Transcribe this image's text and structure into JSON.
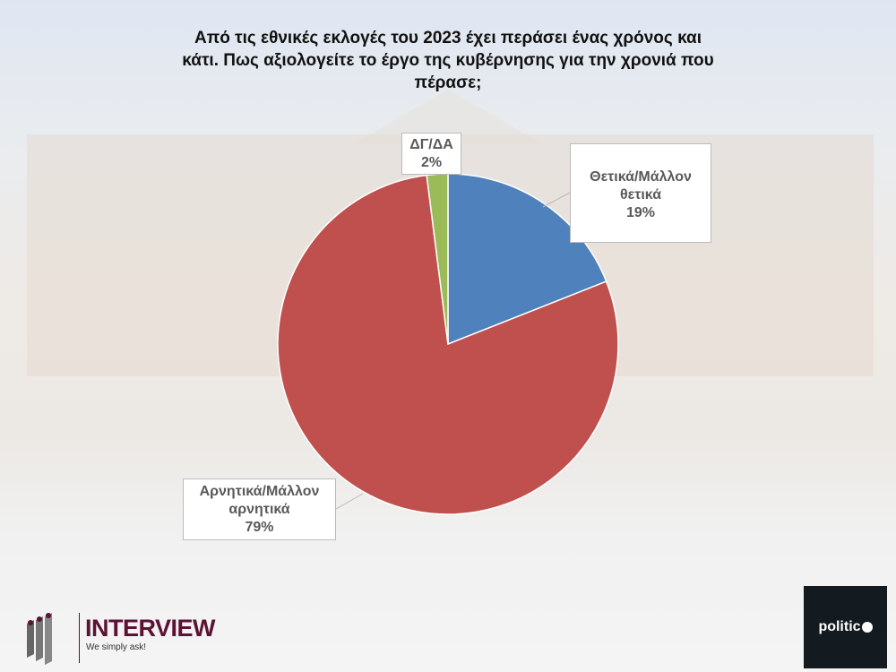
{
  "chart_data": {
    "type": "pie",
    "title": "Από τις εθνικές εκλογές του 2023 έχει περάσει ένας χρόνος και κάτι. Πως αξιολογείτε το έργο της κυβέρνησης για την χρονιά που πέρασε;",
    "slices": [
      {
        "label_line1": "Θετικά/Μάλλον",
        "label_line2": "θετικά",
        "value": 19,
        "value_label": "19%",
        "color": "#4f81bd"
      },
      {
        "label_line1": "Αρνητικά/Μάλλον",
        "label_line2": "αρνητικά",
        "value": 79,
        "value_label": "79%",
        "color": "#c0504d"
      },
      {
        "label_line1": "ΔΓ/ΔΑ",
        "label_line2": "",
        "value": 2,
        "value_label": "2%",
        "color": "#9bbb59"
      }
    ]
  },
  "logos": {
    "interview_name": "INTERVIEW",
    "interview_tagline": "We simply ask!",
    "politic": "politic"
  }
}
